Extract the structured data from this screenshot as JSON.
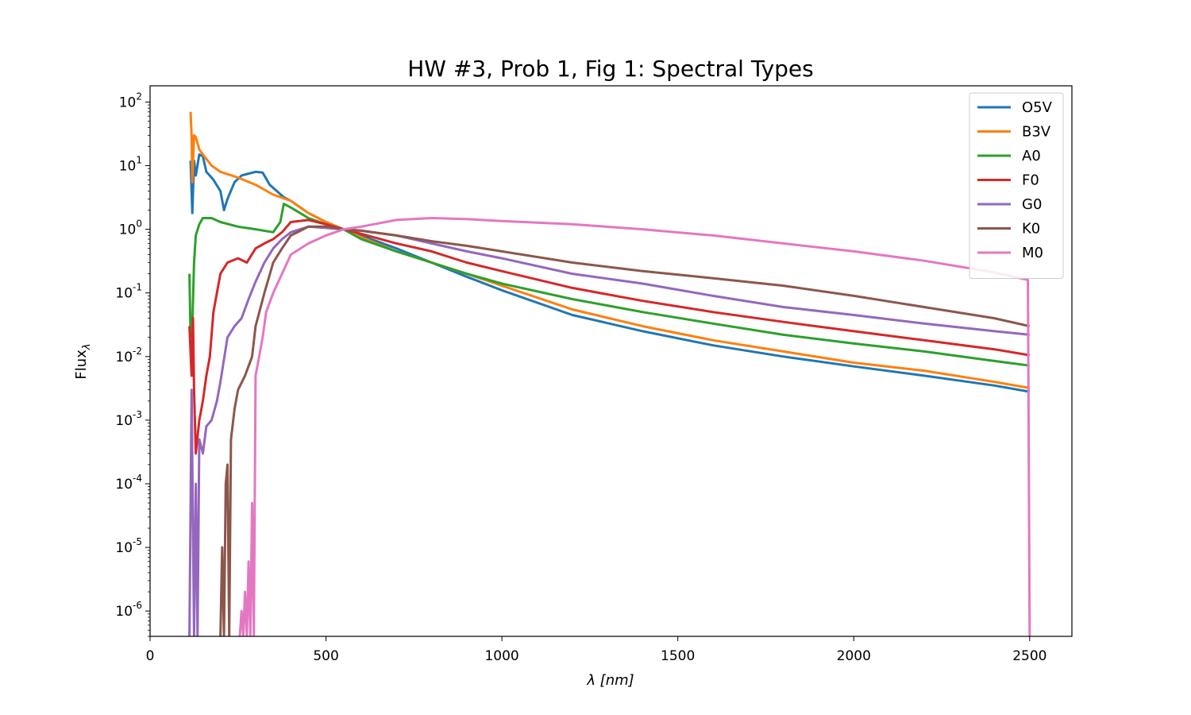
{
  "chart_data": {
    "type": "line",
    "title": "HW #3, Prob 1, Fig 1: Spectral Types",
    "xlabel": "λ [nm]",
    "ylabel": "Fluxλ",
    "xscale": "linear",
    "yscale": "log",
    "xlim": [
      0,
      2620
    ],
    "ylim": [
      4e-07,
      180
    ],
    "xticks": [
      0,
      500,
      1000,
      1500,
      2000,
      2500
    ],
    "xtick_labels": [
      "0",
      "500",
      "1000",
      "1500",
      "2000",
      "2500"
    ],
    "yticks": [
      1e-06,
      1e-05,
      0.0001,
      0.001,
      0.01,
      0.1,
      1,
      10,
      100
    ],
    "ytick_exponents": [
      "-6",
      "-5",
      "-4",
      "-3",
      "-2",
      "-1",
      "0",
      "1",
      "2"
    ],
    "grid": false,
    "legend_position": "top-right",
    "series": [
      {
        "name": "O5V",
        "color": "#1f77b4",
        "x": [
          115,
          120,
          125,
          130,
          140,
          150,
          160,
          180,
          200,
          210,
          220,
          240,
          260,
          280,
          300,
          320,
          340,
          360,
          380,
          400,
          450,
          500,
          550,
          600,
          700,
          800,
          900,
          1000,
          1200,
          1400,
          1600,
          1800,
          2000,
          2200,
          2400,
          2500
        ],
        "y": [
          12,
          1.8,
          12,
          7,
          15,
          14,
          8,
          6,
          4,
          2,
          3,
          5.5,
          7,
          7.5,
          8,
          7.8,
          5,
          4,
          3.2,
          2.8,
          1.8,
          1.3,
          1.0,
          0.8,
          0.5,
          0.3,
          0.18,
          0.11,
          0.045,
          0.025,
          0.015,
          0.01,
          0.007,
          0.005,
          0.0035,
          0.0028
        ]
      },
      {
        "name": "B3V",
        "color": "#ff7f0e",
        "x": [
          115,
          118,
          120,
          125,
          130,
          140,
          150,
          175,
          200,
          250,
          300,
          350,
          400,
          450,
          500,
          550,
          600,
          700,
          800,
          900,
          1000,
          1200,
          1400,
          1600,
          1800,
          2000,
          2200,
          2400,
          2500
        ],
        "y": [
          70,
          30,
          5.5,
          30,
          28,
          18,
          15,
          10,
          8,
          6.5,
          5,
          3.5,
          2.8,
          1.8,
          1.3,
          1.0,
          0.75,
          0.45,
          0.3,
          0.2,
          0.13,
          0.055,
          0.03,
          0.018,
          0.012,
          0.008,
          0.006,
          0.004,
          0.0032
        ]
      },
      {
        "name": "A0",
        "color": "#2ca02c",
        "x": [
          112,
          115,
          118,
          120,
          125,
          130,
          140,
          150,
          175,
          200,
          250,
          300,
          350,
          370,
          380,
          400,
          450,
          500,
          550,
          600,
          700,
          800,
          900,
          1000,
          1200,
          1400,
          1600,
          1800,
          2000,
          2200,
          2400,
          2500
        ],
        "y": [
          0.2,
          0.02,
          0.03,
          0.03,
          0.3,
          0.8,
          1.2,
          1.5,
          1.5,
          1.3,
          1.1,
          1.0,
          0.9,
          1.3,
          2.5,
          2.2,
          1.5,
          1.2,
          1.0,
          0.7,
          0.45,
          0.3,
          0.2,
          0.14,
          0.08,
          0.05,
          0.033,
          0.022,
          0.016,
          0.012,
          0.0085,
          0.0072
        ]
      },
      {
        "name": "F0",
        "color": "#d62728",
        "x": [
          112,
          118,
          122,
          125,
          130,
          140,
          150,
          160,
          170,
          180,
          200,
          220,
          250,
          275,
          300,
          325,
          350,
          375,
          400,
          450,
          500,
          550,
          600,
          700,
          800,
          900,
          1000,
          1200,
          1400,
          1600,
          1800,
          2000,
          2200,
          2400,
          2500
        ],
        "y": [
          0.03,
          0.005,
          0.04,
          0.003,
          0.0003,
          0.001,
          0.002,
          0.005,
          0.01,
          0.05,
          0.2,
          0.3,
          0.35,
          0.3,
          0.5,
          0.6,
          0.7,
          0.9,
          1.3,
          1.4,
          1.2,
          1.0,
          0.85,
          0.6,
          0.45,
          0.3,
          0.22,
          0.12,
          0.075,
          0.05,
          0.035,
          0.025,
          0.018,
          0.013,
          0.0105
        ]
      },
      {
        "name": "G0",
        "color": "#9467bd",
        "x": [
          112,
          118,
          125,
          130,
          135,
          140,
          150,
          160,
          175,
          190,
          200,
          220,
          240,
          260,
          280,
          300,
          325,
          350,
          375,
          400,
          450,
          500,
          550,
          600,
          700,
          800,
          900,
          1000,
          1200,
          1400,
          1600,
          1800,
          2000,
          2200,
          2400,
          2500
        ],
        "y": [
          4e-07,
          0.003,
          4e-07,
          0.0001,
          4e-07,
          0.0005,
          0.0003,
          0.0008,
          0.001,
          0.002,
          0.004,
          0.02,
          0.03,
          0.04,
          0.08,
          0.15,
          0.3,
          0.5,
          0.7,
          0.9,
          1.1,
          1.05,
          1.0,
          0.95,
          0.8,
          0.6,
          0.45,
          0.35,
          0.2,
          0.14,
          0.09,
          0.06,
          0.045,
          0.033,
          0.025,
          0.022
        ]
      },
      {
        "name": "K0",
        "color": "#8c564b",
        "x": [
          200,
          205,
          210,
          215,
          220,
          225,
          230,
          240,
          250,
          270,
          290,
          300,
          325,
          350,
          375,
          400,
          450,
          500,
          550,
          600,
          700,
          800,
          900,
          1000,
          1200,
          1400,
          1600,
          1800,
          2000,
          2200,
          2400,
          2500
        ],
        "y": [
          4e-07,
          1e-05,
          4e-07,
          0.0001,
          0.0002,
          4e-07,
          0.0005,
          0.0015,
          0.003,
          0.005,
          0.01,
          0.03,
          0.1,
          0.3,
          0.5,
          0.8,
          1.1,
          1.1,
          1.0,
          0.95,
          0.8,
          0.65,
          0.55,
          0.45,
          0.3,
          0.22,
          0.17,
          0.13,
          0.09,
          0.06,
          0.04,
          0.03
        ]
      },
      {
        "name": "M0",
        "color": "#e377c2",
        "x": [
          255,
          260,
          265,
          270,
          275,
          280,
          285,
          290,
          295,
          300,
          310,
          320,
          330,
          350,
          375,
          400,
          450,
          500,
          550,
          600,
          700,
          800,
          900,
          1000,
          1200,
          1400,
          1600,
          1800,
          2000,
          2200,
          2400,
          2495,
          2500
        ],
        "y": [
          4e-07,
          1e-06,
          4e-07,
          2e-06,
          4e-07,
          6e-06,
          4e-07,
          5e-05,
          4e-07,
          0.005,
          0.01,
          0.02,
          0.05,
          0.1,
          0.2,
          0.4,
          0.6,
          0.8,
          1.0,
          1.1,
          1.4,
          1.5,
          1.45,
          1.35,
          1.2,
          1.0,
          0.8,
          0.6,
          0.45,
          0.32,
          0.21,
          0.16,
          4e-07
        ]
      }
    ]
  }
}
